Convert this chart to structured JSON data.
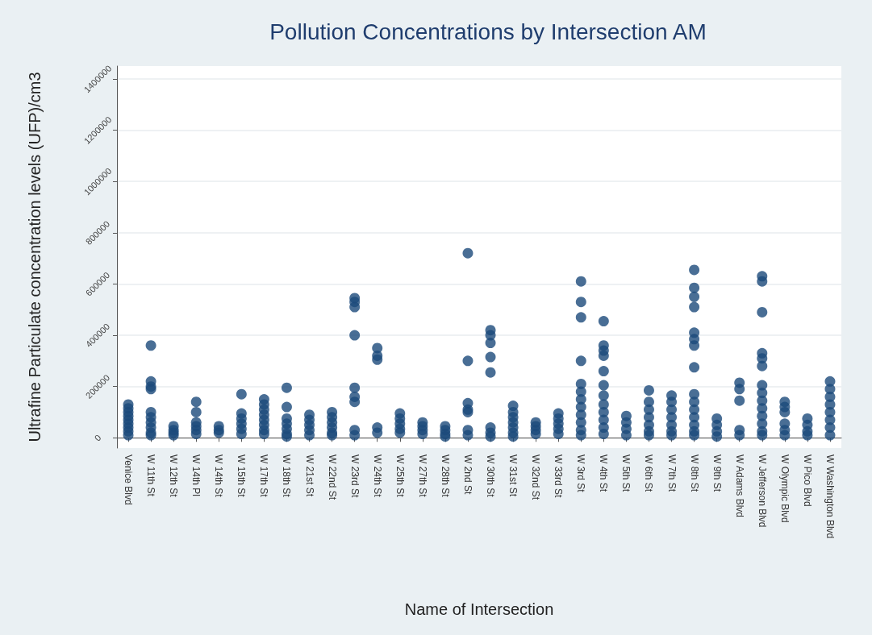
{
  "chart_data": {
    "type": "scatter",
    "title": "Pollution Concentrations by Intersection AM",
    "xlabel": "Name of Intersection",
    "ylabel": "Ultrafine Particulate concentration levels (UFP)/cm3",
    "categories": [
      "Venice Blvd",
      "W 11th St",
      "W 12th St",
      "W 14th Pl",
      "W 14th St",
      "W 15th St",
      "W 17th St",
      "W 18th St",
      "W 21st St",
      "W 22nd St",
      "W 23rd St",
      "W 24th St",
      "W 25th St",
      "W 27th St",
      "W 28th St",
      "W 2nd St",
      "W 30th St",
      "W 31st St",
      "W 32nd St",
      "W 33rd St",
      "W 3rd St",
      "W 4th St",
      "W 5th St",
      "W 6th St",
      "W 7th St",
      "W 8th St",
      "W 9th St",
      "W Adams Blvd",
      "W Jefferson Blvd",
      "W Olympic Blvd",
      "W Pico Blvd",
      "W Washington Blvd"
    ],
    "series": [
      {
        "color": "#1c4a7a",
        "x": [
          "Venice Blvd",
          "Venice Blvd",
          "Venice Blvd",
          "Venice Blvd",
          "Venice Blvd",
          "Venice Blvd",
          "Venice Blvd",
          "Venice Blvd",
          "Venice Blvd",
          "W 11th St",
          "W 11th St",
          "W 11th St",
          "W 11th St",
          "W 11th St",
          "W 11th St",
          "W 11th St",
          "W 11th St",
          "W 11th St",
          "W 11th St",
          "W 12th St",
          "W 12th St",
          "W 12th St",
          "W 12th St",
          "W 14th Pl",
          "W 14th Pl",
          "W 14th Pl",
          "W 14th Pl",
          "W 14th Pl",
          "W 14th Pl",
          "W 14th St",
          "W 14th St",
          "W 14th St",
          "W 15th St",
          "W 15th St",
          "W 15th St",
          "W 15th St",
          "W 15th St",
          "W 15th St",
          "W 17th St",
          "W 17th St",
          "W 17th St",
          "W 17th St",
          "W 17th St",
          "W 17th St",
          "W 17th St",
          "W 17th St",
          "W 18th St",
          "W 18th St",
          "W 18th St",
          "W 18th St",
          "W 18th St",
          "W 18th St",
          "W 18th St",
          "W 21st St",
          "W 21st St",
          "W 21st St",
          "W 21st St",
          "W 21st St",
          "W 22nd St",
          "W 22nd St",
          "W 22nd St",
          "W 22nd St",
          "W 22nd St",
          "W 22nd St",
          "W 23rd St",
          "W 23rd St",
          "W 23rd St",
          "W 23rd St",
          "W 23rd St",
          "W 23rd St",
          "W 23rd St",
          "W 23rd St",
          "W 23rd St",
          "W 24th St",
          "W 24th St",
          "W 24th St",
          "W 24th St",
          "W 24th St",
          "W 25th St",
          "W 25th St",
          "W 25th St",
          "W 25th St",
          "W 25th St",
          "W 27th St",
          "W 27th St",
          "W 27th St",
          "W 27th St",
          "W 28th St",
          "W 28th St",
          "W 28th St",
          "W 28th St",
          "W 2nd St",
          "W 2nd St",
          "W 2nd St",
          "W 2nd St",
          "W 2nd St",
          "W 2nd St",
          "W 2nd St",
          "W 30th St",
          "W 30th St",
          "W 30th St",
          "W 30th St",
          "W 30th St",
          "W 30th St",
          "W 30th St",
          "W 30th St",
          "W 31st St",
          "W 31st St",
          "W 31st St",
          "W 31st St",
          "W 31st St",
          "W 31st St",
          "W 31st St",
          "W 32nd St",
          "W 32nd St",
          "W 32nd St",
          "W 32nd St",
          "W 33rd St",
          "W 33rd St",
          "W 33rd St",
          "W 33rd St",
          "W 33rd St",
          "W 3rd St",
          "W 3rd St",
          "W 3rd St",
          "W 3rd St",
          "W 3rd St",
          "W 3rd St",
          "W 3rd St",
          "W 3rd St",
          "W 3rd St",
          "W 3rd St",
          "W 3rd St",
          "W 3rd St",
          "W 4th St",
          "W 4th St",
          "W 4th St",
          "W 4th St",
          "W 4th St",
          "W 4th St",
          "W 4th St",
          "W 4th St",
          "W 4th St",
          "W 4th St",
          "W 4th St",
          "W 4th St",
          "W 5th St",
          "W 5th St",
          "W 5th St",
          "W 5th St",
          "W 6th St",
          "W 6th St",
          "W 6th St",
          "W 6th St",
          "W 6th St",
          "W 6th St",
          "W 6th St",
          "W 7th St",
          "W 7th St",
          "W 7th St",
          "W 7th St",
          "W 7th St",
          "W 7th St",
          "W 7th St",
          "W 8th St",
          "W 8th St",
          "W 8th St",
          "W 8th St",
          "W 8th St",
          "W 8th St",
          "W 8th St",
          "W 8th St",
          "W 8th St",
          "W 8th St",
          "W 8th St",
          "W 8th St",
          "W 8th St",
          "W 8th St",
          "W 8th St",
          "W 9th St",
          "W 9th St",
          "W 9th St",
          "W 9th St",
          "W Adams Blvd",
          "W Adams Blvd",
          "W Adams Blvd",
          "W Adams Blvd",
          "W Adams Blvd",
          "W Jefferson Blvd",
          "W Jefferson Blvd",
          "W Jefferson Blvd",
          "W Jefferson Blvd",
          "W Jefferson Blvd",
          "W Jefferson Blvd",
          "W Jefferson Blvd",
          "W Jefferson Blvd",
          "W Jefferson Blvd",
          "W Jefferson Blvd",
          "W Jefferson Blvd",
          "W Jefferson Blvd",
          "W Jefferson Blvd",
          "W Jefferson Blvd",
          "W Olympic Blvd",
          "W Olympic Blvd",
          "W Olympic Blvd",
          "W Olympic Blvd",
          "W Olympic Blvd",
          "W Olympic Blvd",
          "W Pico Blvd",
          "W Pico Blvd",
          "W Pico Blvd",
          "W Pico Blvd",
          "W Washington Blvd",
          "W Washington Blvd",
          "W Washington Blvd",
          "W Washington Blvd",
          "W Washington Blvd",
          "W Washington Blvd",
          "W Washington Blvd",
          "W Washington Blvd"
        ],
        "values": [
          10000,
          25000,
          40000,
          55000,
          70000,
          85000,
          100000,
          115000,
          130000,
          360000,
          220000,
          200000,
          190000,
          100000,
          80000,
          60000,
          40000,
          20000,
          10000,
          10000,
          20000,
          30000,
          45000,
          140000,
          100000,
          60000,
          45000,
          30000,
          15000,
          20000,
          30000,
          45000,
          170000,
          95000,
          75000,
          55000,
          35000,
          15000,
          150000,
          130000,
          110000,
          90000,
          70000,
          50000,
          30000,
          15000,
          195000,
          120000,
          75000,
          55000,
          35000,
          15000,
          5000,
          90000,
          70000,
          50000,
          30000,
          10000,
          100000,
          80000,
          60000,
          40000,
          20000,
          10000,
          545000,
          530000,
          510000,
          400000,
          195000,
          160000,
          140000,
          30000,
          10000,
          350000,
          320000,
          305000,
          40000,
          20000,
          95000,
          75000,
          55000,
          35000,
          20000,
          60000,
          45000,
          30000,
          15000,
          45000,
          30000,
          15000,
          5000,
          720000,
          300000,
          135000,
          110000,
          100000,
          30000,
          10000,
          420000,
          400000,
          370000,
          315000,
          255000,
          40000,
          20000,
          5000,
          125000,
          100000,
          80000,
          60000,
          40000,
          20000,
          5000,
          60000,
          45000,
          30000,
          15000,
          95000,
          75000,
          55000,
          35000,
          15000,
          610000,
          530000,
          470000,
          300000,
          210000,
          180000,
          150000,
          120000,
          90000,
          60000,
          30000,
          10000,
          455000,
          360000,
          340000,
          320000,
          260000,
          205000,
          165000,
          130000,
          100000,
          70000,
          40000,
          15000,
          85000,
          60000,
          35000,
          10000,
          185000,
          140000,
          110000,
          80000,
          50000,
          25000,
          10000,
          165000,
          140000,
          110000,
          80000,
          50000,
          25000,
          10000,
          655000,
          585000,
          550000,
          510000,
          410000,
          385000,
          360000,
          275000,
          170000,
          140000,
          110000,
          80000,
          50000,
          25000,
          10000,
          75000,
          50000,
          25000,
          5000,
          215000,
          190000,
          145000,
          30000,
          10000,
          630000,
          610000,
          490000,
          330000,
          310000,
          280000,
          205000,
          175000,
          145000,
          115000,
          85000,
          55000,
          25000,
          10000,
          140000,
          120000,
          100000,
          55000,
          30000,
          10000,
          75000,
          50000,
          25000,
          10000,
          220000,
          190000,
          160000,
          130000,
          100000,
          70000,
          40000,
          10000
        ]
      }
    ],
    "ylim": [
      -40000,
      1450000
    ],
    "yticks": [
      0,
      200000,
      400000,
      600000,
      800000,
      1000000,
      1200000,
      1400000
    ],
    "grid": "y",
    "marker": "circle"
  }
}
